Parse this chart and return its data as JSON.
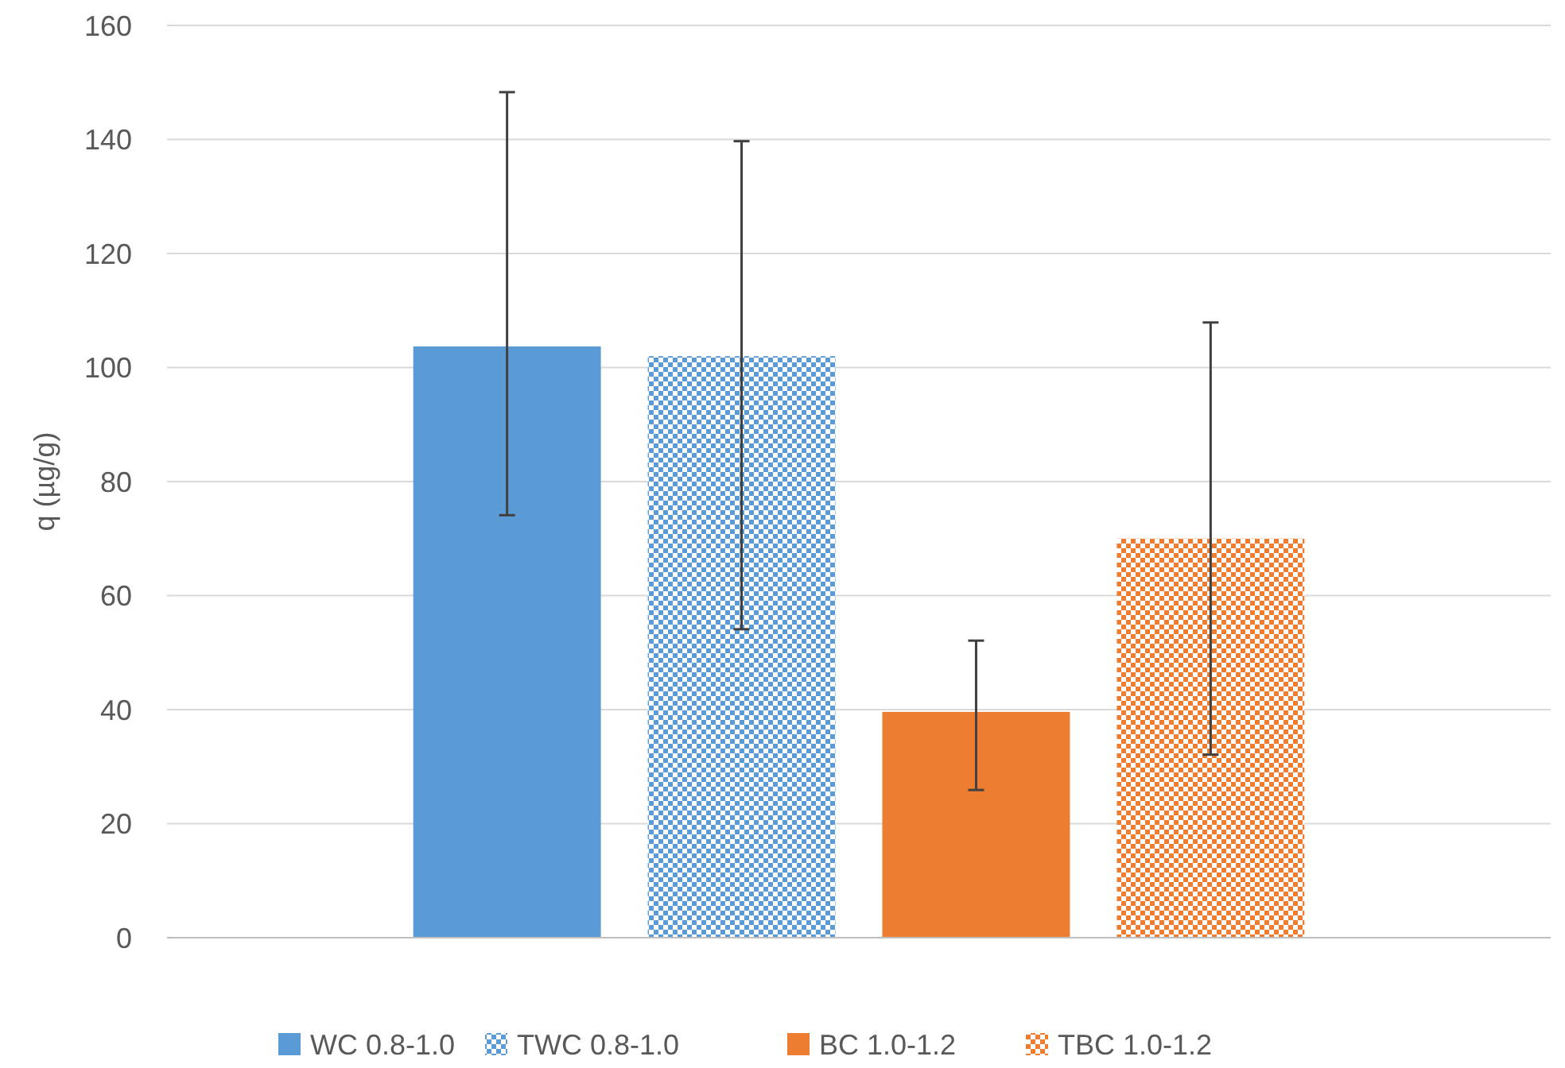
{
  "chart_data": {
    "type": "bar",
    "ylabel": "q (µg/g)",
    "categories": [
      null
    ],
    "series": [
      {
        "name": "WC 0.8-1.0",
        "color": "#5b9bd5",
        "values": [
          103.7
        ],
        "errors": [
          [
            74.1,
            148.3
          ]
        ]
      },
      {
        "name": "TWC 0.8-1.0",
        "color": "#5b9bd5",
        "values": [
          102
        ],
        "errors": [
          [
            54.1,
            139.7
          ]
        ]
      },
      {
        "name": "BC 1.0-1.2",
        "color": "#ed7d31",
        "values": [
          39.6
        ],
        "errors": [
          [
            25.9,
            52.1
          ]
        ]
      },
      {
        "name": "TBC 1.0-1.2",
        "color": "#ed7d31",
        "values": [
          70
        ],
        "errors": [
          [
            32.1,
            107.9
          ]
        ]
      }
    ],
    "ylim": [
      0,
      160
    ],
    "yticks": [
      0,
      20,
      40,
      60,
      80,
      100,
      120,
      140,
      160
    ],
    "grid": "y",
    "legend": "bottom"
  }
}
